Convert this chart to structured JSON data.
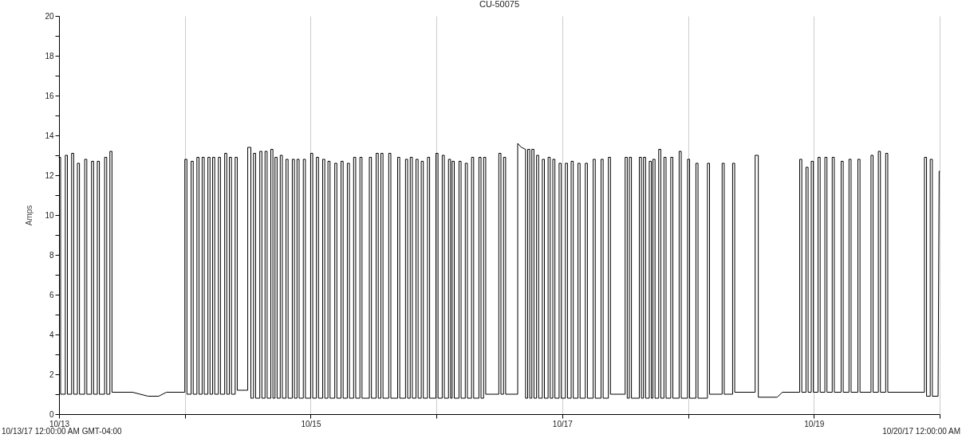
{
  "chart_data": {
    "type": "line",
    "title": "CU-50075",
    "ylabel": "Amps",
    "color": "#000000",
    "x": [
      "--10-13T00:00",
      "--10-13T00:18",
      "--10-13T00:18",
      "--10-13T01:12",
      "--10-13T01:12",
      "--10-13T01:36",
      "--10-13T01:36",
      "--10-13T02:24",
      "--10-13T02:24",
      "--10-13T02:48",
      "--10-13T02:48",
      "--10-13T03:30",
      "--10-13T03:30",
      "--10-13T03:54",
      "--10-13T03:54",
      "--10-13T04:54",
      "--10-13T04:54",
      "--10-13T05:18",
      "--10-13T05:18",
      "--10-13T06:12",
      "--10-13T06:12",
      "--10-13T06:36",
      "--10-13T06:36",
      "--10-13T07:18",
      "--10-13T07:18",
      "--10-13T07:42",
      "--10-13T07:42",
      "--10-13T08:42",
      "--10-13T08:42",
      "--10-13T09:06",
      "--10-13T09:06",
      "--10-13T09:42",
      "--10-13T09:42",
      "--10-13T10:06",
      "--10-13T10:06",
      "--10-13T14:00",
      "--10-13T17:00",
      "--10-13T19:00",
      "--10-13T20:30",
      "--10-14T00:00",
      "--10-14T00:00",
      "--10-14T00:24",
      "--10-14T00:24",
      "--10-14T01:12",
      "--10-14T01:12",
      "--10-14T01:36",
      "--10-14T01:36",
      "--10-14T02:18",
      "--10-14T02:18",
      "--10-14T02:42",
      "--10-14T02:42",
      "--10-14T03:18",
      "--10-14T03:18",
      "--10-14T03:42",
      "--10-14T03:42",
      "--10-14T04:24",
      "--10-14T04:24",
      "--10-14T04:48",
      "--10-14T04:48",
      "--10-14T05:18",
      "--10-14T05:18",
      "--10-14T05:42",
      "--10-14T05:42",
      "--10-14T06:24",
      "--10-14T06:24",
      "--10-14T06:48",
      "--10-14T06:48",
      "--10-14T07:36",
      "--10-14T07:36",
      "--10-14T08:00",
      "--10-14T08:00",
      "--10-14T08:30",
      "--10-14T08:30",
      "--10-14T08:54",
      "--10-14T08:54",
      "--10-14T09:36",
      "--10-14T09:36",
      "--10-14T10:00",
      "--10-14T10:00",
      "--10-14T11:54",
      "--10-14T12:00",
      "--10-14T12:00",
      "--10-14T12:36",
      "--10-14T12:36",
      "--10-14T13:06",
      "--10-14T13:06",
      "--10-14T13:30",
      "--10-14T13:30",
      "--10-14T14:18",
      "--10-14T14:18",
      "--10-14T14:42",
      "--10-14T14:42",
      "--10-14T15:18",
      "--10-14T15:18",
      "--10-14T15:42",
      "--10-14T15:42",
      "--10-14T16:24",
      "--10-14T16:24",
      "--10-14T16:48",
      "--10-14T16:48",
      "--10-14T17:12",
      "--10-14T17:12",
      "--10-14T17:36",
      "--10-14T17:36",
      "--10-14T18:12",
      "--10-14T18:12",
      "--10-14T18:36",
      "--10-14T18:36",
      "--10-14T19:18",
      "--10-14T19:18",
      "--10-14T19:42",
      "--10-14T19:42",
      "--10-14T20:30",
      "--10-14T20:30",
      "--10-14T20:54",
      "--10-14T20:54",
      "--10-14T21:24",
      "--10-14T21:24",
      "--10-14T21:48",
      "--10-14T21:48",
      "--10-14T22:36",
      "--10-14T22:36",
      "--10-14T23:00",
      "--10-14T23:00",
      "--10-15T00:00",
      "--10-15T00:00",
      "--10-15T00:24",
      "--10-15T00:24",
      "--10-15T01:06",
      "--10-15T01:06",
      "--10-15T01:30",
      "--10-15T01:30",
      "--10-15T02:18",
      "--10-15T02:18",
      "--10-15T02:42",
      "--10-15T02:42",
      "--10-15T03:18",
      "--10-15T03:18",
      "--10-15T03:42",
      "--10-15T03:42",
      "--10-15T04:36",
      "--10-15T04:36",
      "--10-15T05:00",
      "--10-15T05:00",
      "--10-15T05:48",
      "--10-15T05:48",
      "--10-15T06:12",
      "--10-15T06:12",
      "--10-15T07:00",
      "--10-15T07:00",
      "--10-15T07:24",
      "--10-15T07:24",
      "--10-15T08:12",
      "--10-15T08:12",
      "--10-15T08:36",
      "--10-15T08:36",
      "--10-15T09:24",
      "--10-15T09:24",
      "--10-15T09:48",
      "--10-15T09:48",
      "--10-15T11:12",
      "--10-15T11:12",
      "--10-15T11:36",
      "--10-15T11:36",
      "--10-15T12:30",
      "--10-15T12:30",
      "--10-15T12:54",
      "--10-15T12:54",
      "--10-15T13:24",
      "--10-15T13:24",
      "--10-15T13:48",
      "--10-15T13:48",
      "--10-15T14:54",
      "--10-15T14:54",
      "--10-15T15:18",
      "--10-15T15:18",
      "--10-15T16:36",
      "--10-15T16:36",
      "--10-15T17:00",
      "--10-15T17:00",
      "--10-15T18:06",
      "--10-15T18:06",
      "--10-15T18:30",
      "--10-15T18:30",
      "--10-15T19:00",
      "--10-15T19:00",
      "--10-15T19:24",
      "--10-15T19:24",
      "--10-15T20:06",
      "--10-15T20:06",
      "--10-15T20:30",
      "--10-15T20:30",
      "--10-15T21:06",
      "--10-15T21:06",
      "--10-15T21:30",
      "--10-15T21:30",
      "--10-15T22:18",
      "--10-15T22:18",
      "--10-15T22:42",
      "--10-15T22:42",
      "--10-15T23:54",
      "--10-15T23:54",
      "--10-16T00:18",
      "--10-16T00:18",
      "--10-16T01:06",
      "--10-16T01:06",
      "--10-16T01:30",
      "--10-16T01:30",
      "--10-16T02:18",
      "--10-16T02:18",
      "--10-16T02:42",
      "--10-16T02:42",
      "--10-16T03:00",
      "--10-16T03:00",
      "--10-16T03:24",
      "--10-16T03:24",
      "--10-16T04:18",
      "--10-16T04:18",
      "--10-16T04:42",
      "--10-16T04:42",
      "--10-16T05:30",
      "--10-16T05:30",
      "--10-16T05:54",
      "--10-16T05:54",
      "--10-16T06:42",
      "--10-16T06:42",
      "--10-16T07:06",
      "--10-16T07:06",
      "--10-16T08:06",
      "--10-16T08:06",
      "--10-16T08:30",
      "--10-16T08:30",
      "--10-16T09:00",
      "--10-16T09:00",
      "--10-16T09:24",
      "--10-16T09:24",
      "--10-16T11:54",
      "--10-16T11:54",
      "--10-16T12:18",
      "--10-16T12:18",
      "--10-16T12:48",
      "--10-16T12:48",
      "--10-16T13:12",
      "--10-16T13:12",
      "--10-16T15:30",
      "--10-16T15:30",
      "--10-16T16:12",
      "--10-16T17:00",
      "--10-16T17:00",
      "--10-16T17:24",
      "--10-16T17:24",
      "--10-16T17:48",
      "--10-16T17:48",
      "--10-16T18:12",
      "--10-16T18:12",
      "--10-16T18:36",
      "--10-16T18:36",
      "--10-16T19:06",
      "--10-16T19:06",
      "--10-16T19:30",
      "--10-16T19:30",
      "--10-16T20:12",
      "--10-16T20:12",
      "--10-16T20:36",
      "--10-16T20:36",
      "--10-16T21:18",
      "--10-16T21:18",
      "--10-16T21:42",
      "--10-16T21:42",
      "--10-16T22:12",
      "--10-16T22:12",
      "--10-16T22:36",
      "--10-16T22:36",
      "--10-16T23:24",
      "--10-16T23:24",
      "--10-16T23:48",
      "--10-16T23:48",
      "--10-17T00:36",
      "--10-17T00:36",
      "--10-17T01:00",
      "--10-17T01:00",
      "--10-17T01:42",
      "--10-17T01:42",
      "--10-17T02:06",
      "--10-17T02:06",
      "--10-17T03:00",
      "--10-17T03:00",
      "--10-17T03:24",
      "--10-17T03:24",
      "--10-17T04:24",
      "--10-17T04:24",
      "--10-17T04:48",
      "--10-17T04:48",
      "--10-17T05:54",
      "--10-17T05:54",
      "--10-17T06:18",
      "--10-17T06:18",
      "--10-17T07:24",
      "--10-17T07:24",
      "--10-17T07:48",
      "--10-17T07:48",
      "--10-17T08:48",
      "--10-17T08:48",
      "--10-17T09:12",
      "--10-17T09:12",
      "--10-17T12:00",
      "--10-17T12:00",
      "--10-17T12:24",
      "--10-17T12:24",
      "--10-17T12:48",
      "--10-17T12:48",
      "--10-17T13:12",
      "--10-17T13:12",
      "--10-17T14:42",
      "--10-17T14:42",
      "--10-17T15:06",
      "--10-17T15:06",
      "--10-17T15:30",
      "--10-17T15:30",
      "--10-17T15:54",
      "--10-17T15:54",
      "--10-17T16:36",
      "--10-17T16:36",
      "--10-17T17:00",
      "--10-17T17:00",
      "--10-17T17:18",
      "--10-17T17:18",
      "--10-17T17:42",
      "--10-17T17:42",
      "--10-17T18:24",
      "--10-17T18:24",
      "--10-17T18:48",
      "--10-17T18:48",
      "--10-17T19:24",
      "--10-17T19:24",
      "--10-17T19:48",
      "--10-17T19:48",
      "--10-17T20:42",
      "--10-17T20:42",
      "--10-17T21:06",
      "--10-17T21:06",
      "--10-17T22:18",
      "--10-17T22:18",
      "--10-17T22:42",
      "--10-17T22:42",
      "--10-17T23:54",
      "--10-17T23:54",
      "--10-18T00:18",
      "--10-18T00:18",
      "--10-18T01:30",
      "--10-18T01:30",
      "--10-18T01:54",
      "--10-18T01:54",
      "--10-18T03:42",
      "--10-18T03:42",
      "--10-18T04:06",
      "--10-18T04:06",
      "--10-18T06:30",
      "--10-18T06:30",
      "--10-18T06:54",
      "--10-18T06:54",
      "--10-18T08:30",
      "--10-18T08:30",
      "--10-18T08:54",
      "--10-18T08:54",
      "--10-18T12:48",
      "--10-18T12:48",
      "--10-18T13:24",
      "--10-18T13:24",
      "--10-18T17:00",
      "--10-18T18:00",
      "--10-18T21:18",
      "--10-18T21:18",
      "--10-18T21:42",
      "--10-18T21:42",
      "--10-18T22:30",
      "--10-18T22:30",
      "--10-18T22:54",
      "--10-18T22:54",
      "--10-18T23:30",
      "--10-18T23:30",
      "--10-18T23:54",
      "--10-18T23:54",
      "--10-19T00:48",
      "--10-19T00:48",
      "--10-19T01:12",
      "--10-19T01:12",
      "--10-19T02:06",
      "--10-19T02:06",
      "--10-19T02:30",
      "--10-19T02:30",
      "--10-19T03:30",
      "--10-19T03:30",
      "--10-19T03:54",
      "--10-19T03:54",
      "--10-19T05:12",
      "--10-19T05:12",
      "--10-19T05:36",
      "--10-19T05:36",
      "--10-19T06:42",
      "--10-19T06:42",
      "--10-19T07:06",
      "--10-19T07:06",
      "--10-19T08:24",
      "--10-19T08:24",
      "--10-19T08:48",
      "--10-19T08:48",
      "--10-19T10:54",
      "--10-19T10:54",
      "--10-19T11:18",
      "--10-19T11:18",
      "--10-19T12:18",
      "--10-19T12:18",
      "--10-19T12:42",
      "--10-19T12:42",
      "--10-19T13:42",
      "--10-19T13:42",
      "--10-19T14:06",
      "--10-19T14:06",
      "--10-19T21:06",
      "--10-19T21:06",
      "--10-19T21:30",
      "--10-19T21:30",
      "--10-19T22:12",
      "--10-19T22:12",
      "--10-19T22:36",
      "--10-19T22:36",
      "--10-19T23:42",
      "--10-19T23:54",
      "--10-20T00:00"
    ],
    "values": [
      12.9,
      12.9,
      1.0,
      1.0,
      13.0,
      13.0,
      1.0,
      1.0,
      13.1,
      13.1,
      1.0,
      1.0,
      12.6,
      12.6,
      1.0,
      1.0,
      12.8,
      12.8,
      1.0,
      1.0,
      12.7,
      12.7,
      1.0,
      1.0,
      12.7,
      12.7,
      1.0,
      1.0,
      12.9,
      12.9,
      1.0,
      1.0,
      13.2,
      13.2,
      1.1,
      1.1,
      0.9,
      0.9,
      1.1,
      1.1,
      12.8,
      12.8,
      1.0,
      1.0,
      12.7,
      12.7,
      1.0,
      1.0,
      12.9,
      12.9,
      1.0,
      1.0,
      12.9,
      12.9,
      1.0,
      1.0,
      12.9,
      12.9,
      1.0,
      1.0,
      12.9,
      12.9,
      1.0,
      1.0,
      12.9,
      12.9,
      1.0,
      1.0,
      13.1,
      13.1,
      1.0,
      1.0,
      12.9,
      12.9,
      1.0,
      1.0,
      12.9,
      12.9,
      1.2,
      1.2,
      1.2,
      13.4,
      13.4,
      0.8,
      0.8,
      13.1,
      13.1,
      0.8,
      0.8,
      13.2,
      13.2,
      0.8,
      0.8,
      13.2,
      13.2,
      0.8,
      0.8,
      13.3,
      13.3,
      0.8,
      0.8,
      12.9,
      12.9,
      0.8,
      0.8,
      13.0,
      13.0,
      0.8,
      0.8,
      12.8,
      12.8,
      0.8,
      0.8,
      12.8,
      12.8,
      0.8,
      0.8,
      12.8,
      12.8,
      0.8,
      0.8,
      12.8,
      12.8,
      0.8,
      0.8,
      13.1,
      13.1,
      0.8,
      0.8,
      12.9,
      12.9,
      0.8,
      0.8,
      12.8,
      12.8,
      0.8,
      0.8,
      12.7,
      12.7,
      0.8,
      0.8,
      12.6,
      12.6,
      0.8,
      0.8,
      12.7,
      12.7,
      0.8,
      0.8,
      12.6,
      12.6,
      0.8,
      0.8,
      12.9,
      12.9,
      0.8,
      0.8,
      12.9,
      12.9,
      0.8,
      0.8,
      12.9,
      12.9,
      0.8,
      0.8,
      13.1,
      13.1,
      0.8,
      0.8,
      13.1,
      13.1,
      0.8,
      0.8,
      13.1,
      13.1,
      0.8,
      0.8,
      12.9,
      12.9,
      0.8,
      0.8,
      12.8,
      12.8,
      0.8,
      0.8,
      12.9,
      12.9,
      0.8,
      0.8,
      12.8,
      12.8,
      0.8,
      0.8,
      12.7,
      12.7,
      0.8,
      0.8,
      12.9,
      12.9,
      0.8,
      0.8,
      13.1,
      13.1,
      0.8,
      0.8,
      13.0,
      13.0,
      0.8,
      0.8,
      12.8,
      12.8,
      0.8,
      0.8,
      12.7,
      12.7,
      0.8,
      0.8,
      12.7,
      12.7,
      0.8,
      0.8,
      12.6,
      12.6,
      0.8,
      0.8,
      12.9,
      12.9,
      0.8,
      0.8,
      12.9,
      12.9,
      0.8,
      0.8,
      12.9,
      12.9,
      1.0,
      1.0,
      13.1,
      13.1,
      1.0,
      1.0,
      12.9,
      12.9,
      1.0,
      1.0,
      13.6,
      13.4,
      13.3,
      0.8,
      0.8,
      13.3,
      13.3,
      0.8,
      0.8,
      13.3,
      13.3,
      0.8,
      0.8,
      13.0,
      13.0,
      0.8,
      0.8,
      12.8,
      12.8,
      0.8,
      0.8,
      12.9,
      12.9,
      0.8,
      0.8,
      12.8,
      12.8,
      0.8,
      0.8,
      12.6,
      12.6,
      0.8,
      0.8,
      12.6,
      12.6,
      0.8,
      0.8,
      12.7,
      12.7,
      0.8,
      0.8,
      12.6,
      12.6,
      0.8,
      0.8,
      12.6,
      12.6,
      0.8,
      0.8,
      12.8,
      12.8,
      0.8,
      0.8,
      12.8,
      12.8,
      0.8,
      0.8,
      12.9,
      12.9,
      1.0,
      1.0,
      12.9,
      12.9,
      0.8,
      0.8,
      12.9,
      12.9,
      0.8,
      0.8,
      12.9,
      12.9,
      0.8,
      0.8,
      12.9,
      12.9,
      0.8,
      0.8,
      12.7,
      12.7,
      0.8,
      0.8,
      12.8,
      12.8,
      0.8,
      0.8,
      13.3,
      13.3,
      0.8,
      0.8,
      12.9,
      12.9,
      0.8,
      0.8,
      12.9,
      12.9,
      0.8,
      0.8,
      13.2,
      13.2,
      0.8,
      0.8,
      12.8,
      12.8,
      0.8,
      0.8,
      12.6,
      12.6,
      0.8,
      0.8,
      12.6,
      12.6,
      1.0,
      1.0,
      12.6,
      12.6,
      1.0,
      1.0,
      12.6,
      12.6,
      1.1,
      1.1,
      13.0,
      13.0,
      0.85,
      0.85,
      1.1,
      1.1,
      12.8,
      12.8,
      1.1,
      1.1,
      12.4,
      12.4,
      1.1,
      1.1,
      12.7,
      12.7,
      1.1,
      1.1,
      12.9,
      12.9,
      1.1,
      1.1,
      12.9,
      12.9,
      1.1,
      1.1,
      12.9,
      12.9,
      1.1,
      1.1,
      12.7,
      12.7,
      1.1,
      1.1,
      12.8,
      12.8,
      1.1,
      1.1,
      12.8,
      12.8,
      1.1,
      1.1,
      13.0,
      13.0,
      1.1,
      1.1,
      13.2,
      13.2,
      1.1,
      1.1,
      13.1,
      13.1,
      1.1,
      1.1,
      12.9,
      12.9,
      0.9,
      0.9,
      12.8,
      12.8,
      0.9,
      0.9,
      12.2,
      12.2
    ],
    "xlim": [
      "--10-13T00:00",
      "--10-20T00:00"
    ],
    "xticks": [
      {
        "value": "--10-13T00:00",
        "label": "10/13"
      },
      {
        "value": "--10-14T00:00",
        "label": null
      },
      {
        "value": "--10-15T00:00",
        "label": "10/15"
      },
      {
        "value": "--10-16T00:00",
        "label": null
      },
      {
        "value": "--10-17T00:00",
        "label": "10/17"
      },
      {
        "value": "--10-18T00:00",
        "label": null
      },
      {
        "value": "--10-19T00:00",
        "label": "10/19"
      },
      {
        "value": "--10-20T00:00",
        "label": null
      }
    ],
    "ylim": [
      0,
      20
    ],
    "yticks": [
      0,
      {
        "value": 1,
        "label": null
      },
      2,
      {
        "value": 3,
        "label": null
      },
      4,
      {
        "value": 5,
        "label": null
      },
      6,
      {
        "value": 7,
        "label": null
      },
      8,
      {
        "value": 9,
        "label": null
      },
      10,
      {
        "value": 11,
        "label": null
      },
      12,
      {
        "value": 13,
        "label": null
      },
      14,
      {
        "value": 15,
        "label": null
      },
      16,
      {
        "value": 17,
        "label": null
      },
      18,
      {
        "value": 19,
        "label": null
      },
      20
    ],
    "grid": "x",
    "annotations": [
      "10/13/17 12:00:00 AM GMT-04:00",
      "10/20/17 12:00:00 AM"
    ]
  }
}
